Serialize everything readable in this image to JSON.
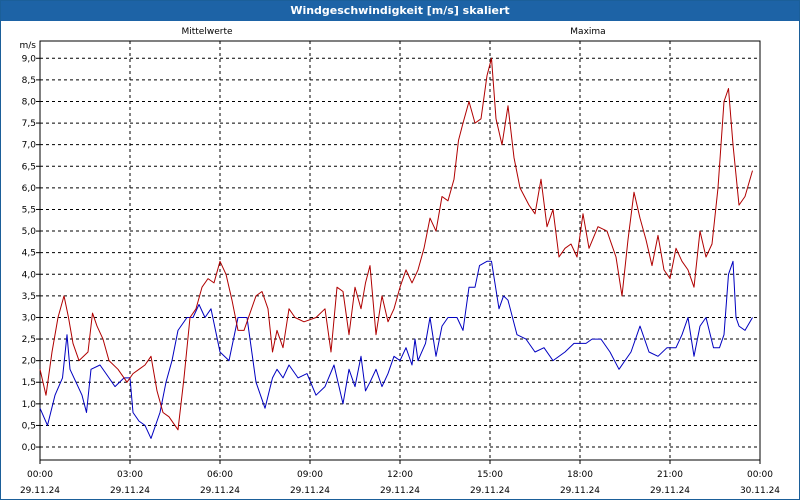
{
  "window": {
    "title": "Windgeschwindigkeit [m/s] skaliert"
  },
  "chart_data": {
    "type": "line",
    "title": "Windgeschwindigkeit [m/s] skaliert",
    "ylabel": "m/s",
    "ylim": [
      -0.3,
      9.4
    ],
    "yticks": [
      "0,0",
      "0,5",
      "1,0",
      "1,5",
      "2,0",
      "2,5",
      "3,0",
      "3,5",
      "4,0",
      "4,5",
      "5,0",
      "5,5",
      "6,0",
      "6,5",
      "7,0",
      "7,5",
      "8,0",
      "8,5",
      "9,0"
    ],
    "xlim": [
      0,
      24
    ],
    "xticks": [
      {
        "time": "00:00",
        "date": "29.11.24"
      },
      {
        "time": "03:00",
        "date": "29.11.24"
      },
      {
        "time": "06:00",
        "date": "29.11.24"
      },
      {
        "time": "09:00",
        "date": "29.11.24"
      },
      {
        "time": "12:00",
        "date": "29.11.24"
      },
      {
        "time": "15:00",
        "date": "29.11.24"
      },
      {
        "time": "18:00",
        "date": "29.11.24"
      },
      {
        "time": "21:00",
        "date": "29.11.24"
      },
      {
        "time": "00:00",
        "date": "30.11.24"
      }
    ],
    "grid": true,
    "series": [
      {
        "name": "Mittelwerte",
        "color": "#0000c0",
        "x": [
          0,
          0.25,
          0.5,
          0.75,
          0.9,
          1,
          1.2,
          1.4,
          1.55,
          1.7,
          2,
          2.3,
          2.5,
          2.8,
          3,
          3.1,
          3.3,
          3.5,
          3.7,
          4,
          4.2,
          4.4,
          4.6,
          4.9,
          5.1,
          5.3,
          5.5,
          5.7,
          6,
          6.3,
          6.6,
          6.9,
          7.2,
          7.5,
          7.75,
          7.9,
          8.1,
          8.3,
          8.6,
          8.9,
          9.2,
          9.5,
          9.8,
          10.1,
          10.3,
          10.5,
          10.7,
          10.85,
          11,
          11.2,
          11.4,
          11.6,
          11.8,
          12,
          12.2,
          12.4,
          12.5,
          12.6,
          12.85,
          13,
          13.2,
          13.4,
          13.6,
          13.9,
          14.1,
          14.3,
          14.5,
          14.65,
          14.9,
          15.05,
          15.3,
          15.45,
          15.6,
          15.9,
          16.2,
          16.5,
          16.8,
          17.1,
          17.5,
          17.8,
          18,
          18.2,
          18.4,
          18.7,
          19,
          19.3,
          19.5,
          19.7,
          20,
          20.3,
          20.6,
          20.9,
          21.2,
          21.4,
          21.6,
          21.8,
          22,
          22.2,
          22.45,
          22.65,
          22.8,
          22.95,
          23.1,
          23.2,
          23.3,
          23.5,
          23.75
        ],
        "y": [
          0.9,
          0.5,
          1.2,
          1.6,
          2.6,
          1.8,
          1.5,
          1.2,
          0.8,
          1.8,
          1.9,
          1.6,
          1.4,
          1.6,
          1.6,
          0.8,
          0.6,
          0.5,
          0.2,
          0.8,
          1.5,
          2.0,
          2.7,
          3.0,
          3.0,
          3.3,
          3.0,
          3.2,
          2.2,
          2.0,
          3.0,
          3.0,
          1.5,
          0.9,
          1.6,
          1.8,
          1.6,
          1.9,
          1.6,
          1.7,
          1.2,
          1.4,
          1.9,
          1.0,
          1.8,
          1.4,
          2.1,
          1.3,
          1.5,
          1.8,
          1.4,
          1.7,
          2.1,
          2.0,
          2.3,
          1.9,
          2.5,
          2.0,
          2.4,
          3.0,
          2.1,
          2.8,
          3.0,
          3.0,
          2.7,
          3.7,
          3.7,
          4.2,
          4.3,
          4.3,
          3.2,
          3.5,
          3.4,
          2.6,
          2.5,
          2.2,
          2.3,
          2.0,
          2.2,
          2.4,
          2.4,
          2.4,
          2.5,
          2.5,
          2.2,
          1.8,
          2.0,
          2.2,
          2.8,
          2.2,
          2.1,
          2.3,
          2.3,
          2.6,
          3.0,
          2.1,
          2.8,
          3.0,
          2.3,
          2.3,
          2.6,
          4.0,
          4.3,
          3.0,
          2.8,
          2.7,
          3.0
        ]
      },
      {
        "name": "Maxima",
        "color": "#b00000",
        "x": [
          0,
          0.2,
          0.4,
          0.6,
          0.8,
          0.95,
          1.1,
          1.3,
          1.6,
          1.75,
          1.9,
          2.1,
          2.3,
          2.6,
          2.9,
          3.1,
          3.3,
          3.5,
          3.7,
          3.9,
          4.1,
          4.3,
          4.6,
          4.8,
          5,
          5.2,
          5.4,
          5.6,
          5.8,
          6,
          6.2,
          6.4,
          6.6,
          6.8,
          7.2,
          7.4,
          7.6,
          7.75,
          7.9,
          8.1,
          8.3,
          8.5,
          8.8,
          9.2,
          9.5,
          9.7,
          9.9,
          10.1,
          10.3,
          10.5,
          10.7,
          10.85,
          11,
          11.2,
          11.4,
          11.6,
          11.8,
          12,
          12.2,
          12.4,
          12.6,
          12.8,
          13,
          13.2,
          13.4,
          13.6,
          13.8,
          13.95,
          14.1,
          14.3,
          14.5,
          14.7,
          14.9,
          15.05,
          15.2,
          15.4,
          15.6,
          15.8,
          16,
          16.3,
          16.5,
          16.7,
          16.9,
          17.1,
          17.3,
          17.5,
          17.7,
          17.9,
          18.1,
          18.3,
          18.6,
          18.9,
          19.2,
          19.4,
          19.6,
          19.8,
          20,
          20.2,
          20.4,
          20.6,
          20.8,
          21,
          21.2,
          21.4,
          21.6,
          21.8,
          22,
          22.2,
          22.4,
          22.6,
          22.8,
          22.95,
          23.1,
          23.3,
          23.5,
          23.75
        ],
        "y": [
          1.8,
          1.2,
          2.2,
          3.0,
          3.5,
          3.0,
          2.4,
          2.0,
          2.2,
          3.1,
          2.8,
          2.5,
          2.0,
          1.8,
          1.5,
          1.7,
          1.8,
          1.9,
          2.1,
          1.3,
          0.8,
          0.7,
          0.4,
          1.6,
          3.0,
          3.2,
          3.7,
          3.9,
          3.8,
          4.3,
          4.0,
          3.4,
          2.7,
          2.7,
          3.5,
          3.6,
          3.2,
          2.2,
          2.7,
          2.3,
          3.2,
          3.0,
          2.9,
          3.0,
          3.2,
          2.2,
          3.7,
          3.6,
          2.6,
          3.7,
          3.2,
          3.8,
          4.2,
          2.6,
          3.5,
          2.9,
          3.2,
          3.7,
          4.1,
          3.8,
          4.1,
          4.6,
          5.3,
          5.0,
          5.8,
          5.7,
          6.2,
          7.1,
          7.5,
          8.0,
          7.5,
          7.6,
          8.6,
          9.0,
          7.6,
          7.0,
          7.9,
          6.7,
          6.0,
          5.6,
          5.4,
          6.2,
          5.1,
          5.5,
          4.4,
          4.6,
          4.7,
          4.4,
          5.4,
          4.6,
          5.1,
          5.0,
          4.4,
          3.5,
          4.8,
          5.9,
          5.3,
          4.8,
          4.2,
          4.9,
          4.1,
          3.9,
          4.6,
          4.3,
          4.1,
          3.7,
          5.0,
          4.4,
          4.7,
          6.0,
          8.0,
          8.3,
          7.0,
          5.6,
          5.8,
          6.4
        ]
      }
    ]
  }
}
